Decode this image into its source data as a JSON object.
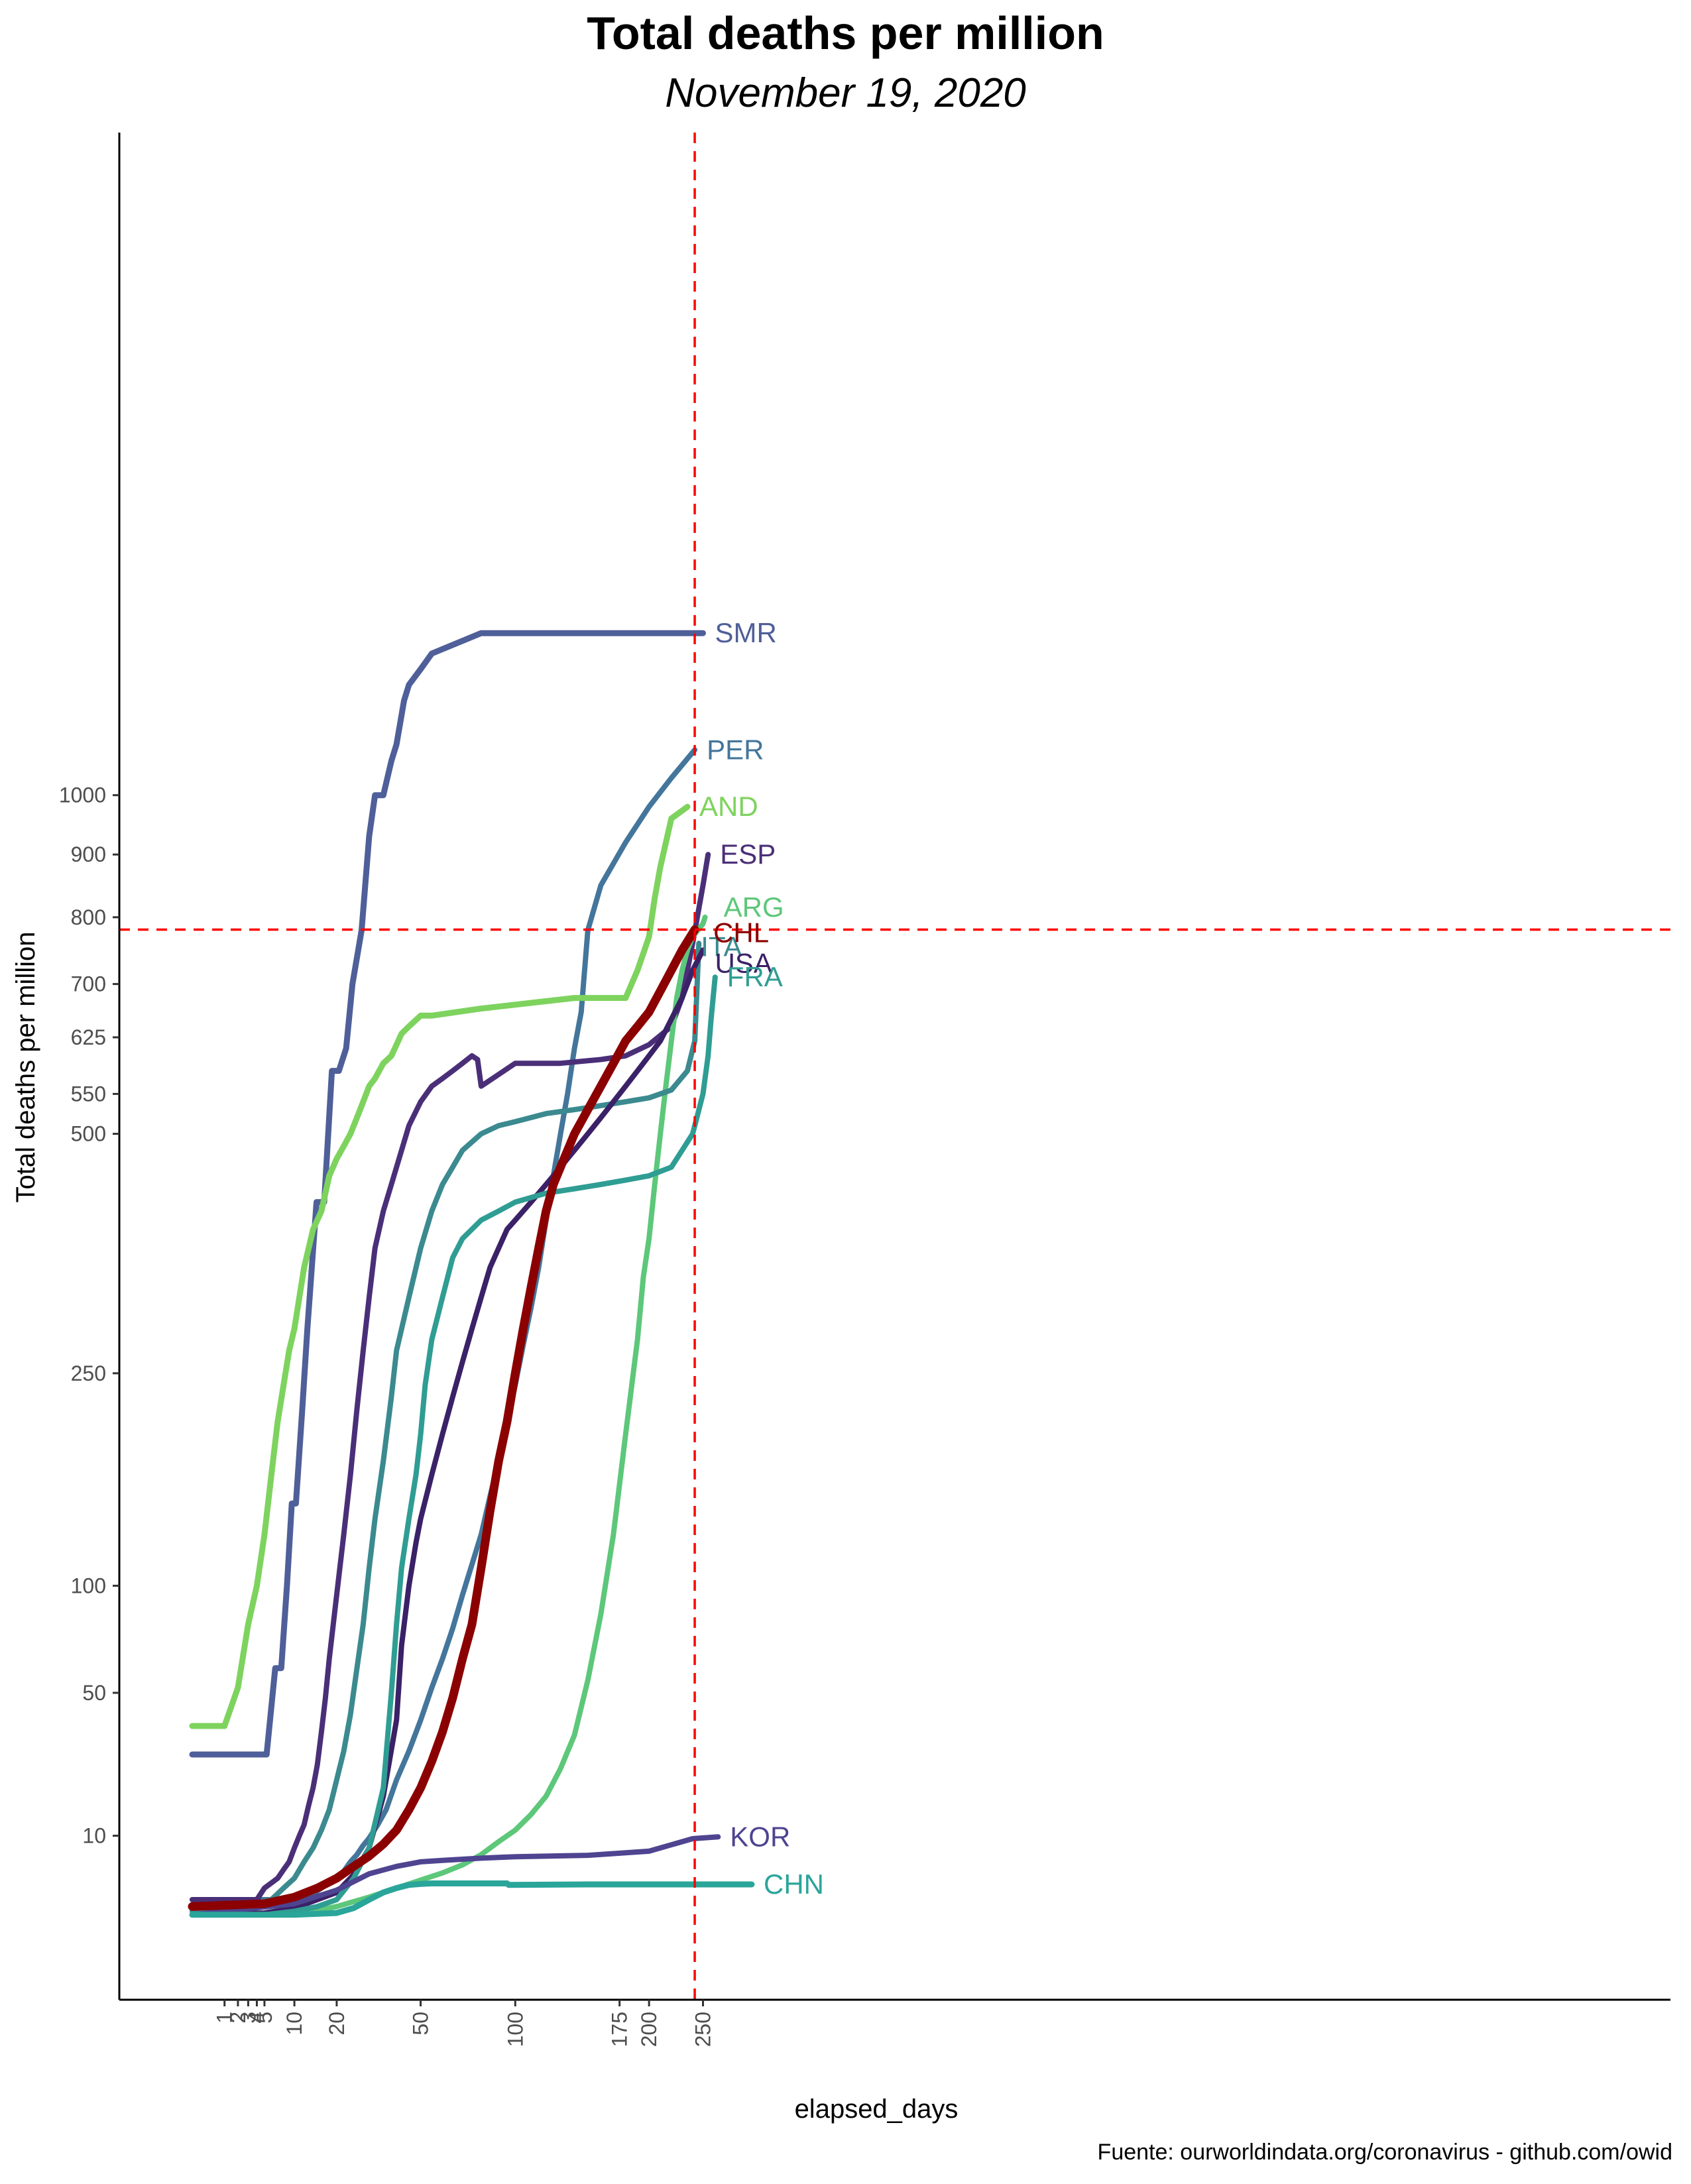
{
  "chart_data": {
    "type": "line",
    "title": "Total deaths per million",
    "subtitle": "November 19, 2020",
    "xlabel": "elapsed_days",
    "ylabel": "Total deaths per million",
    "caption": "Fuente: ourworldindata.org/coronavirus - github.com/owid",
    "x_scale": "sqrt",
    "y_scale": "sqrt",
    "x_ticks": [
      1,
      2,
      3,
      4,
      5,
      10,
      20,
      50,
      100,
      175,
      200,
      250
    ],
    "y_ticks": [
      10,
      50,
      100,
      250,
      500,
      550,
      625,
      700,
      800,
      900,
      1000
    ],
    "reference_lines": {
      "x": 242,
      "y": 781,
      "color": "#ff0000",
      "style": "dashed"
    },
    "grid": false,
    "legend": "direct labels at line ends",
    "series": [
      {
        "name": "SMR",
        "color": "#4f5f99",
        "width": 9,
        "x": [
          0,
          5.3,
          6.6,
          7.6,
          8.6,
          9.5,
          10.3,
          11.6,
          12.7,
          14.8,
          16.7,
          18.7,
          20.6,
          22.7,
          24.6,
          27.5,
          30,
          32,
          35,
          38,
          40,
          43,
          45,
          50,
          55,
          80,
          250
        ],
        "y": [
          29,
          29,
          60,
          60,
          100,
          150,
          150,
          220,
          290,
          420,
          420,
          580,
          580,
          610,
          700,
          780,
          930,
          1000,
          1000,
          1060,
          1090,
          1170,
          1200,
          1230,
          1260,
          1300,
          1300
        ]
      },
      {
        "name": "PER",
        "color": "#44769b",
        "width": 8,
        "x": [
          0,
          2,
          4,
          6,
          8,
          10,
          12,
          14,
          16,
          18,
          20,
          22,
          24,
          26,
          28,
          30,
          33,
          36,
          40,
          45,
          50,
          55,
          60,
          65,
          70,
          75,
          80,
          85,
          90,
          95,
          100,
          105,
          110,
          115,
          120,
          125,
          130,
          135,
          140,
          145,
          150,
          160,
          180,
          200,
          220,
          242
        ],
        "y": [
          2,
          2,
          2,
          2,
          2,
          2,
          2.2,
          2.5,
          3,
          3.5,
          4,
          4.8,
          6,
          7,
          8.4,
          9.6,
          12,
          15,
          22,
          30,
          40,
          52,
          64,
          78,
          95,
          112,
          130,
          155,
          180,
          210,
          240,
          275,
          310,
          350,
          400,
          450,
          500,
          550,
          610,
          660,
          780,
          850,
          920,
          980,
          1030,
          1080
        ]
      },
      {
        "name": "AND",
        "color": "#7ed35e",
        "width": 9,
        "x": [
          0,
          1,
          2,
          3,
          4,
          5,
          6,
          7,
          8,
          9,
          10,
          11,
          12,
          13,
          14,
          15,
          16,
          17,
          18,
          20,
          22,
          24,
          26,
          28,
          30,
          32,
          35,
          38,
          40,
          42,
          45,
          50,
          55,
          80,
          140,
          180,
          190,
          200,
          205,
          210,
          220,
          235
        ],
        "y": [
          38,
          38,
          52,
          80,
          100,
          130,
          170,
          210,
          240,
          270,
          290,
          320,
          350,
          370,
          390,
          400,
          410,
          430,
          450,
          470,
          485,
          500,
          520,
          540,
          560,
          570,
          590,
          600,
          615,
          630,
          640,
          655,
          655,
          665,
          680,
          680,
          720,
          770,
          830,
          880,
          960,
          980
        ]
      },
      {
        "name": "ESP",
        "color": "#4a2f78",
        "width": 8,
        "x": [
          0,
          2,
          4,
          5,
          6,
          7,
          8,
          9,
          10,
          11,
          12,
          13,
          14,
          15,
          16,
          17,
          18,
          20,
          22,
          24,
          26,
          28,
          30,
          32,
          35,
          38,
          40,
          45,
          50,
          55,
          60,
          65,
          70,
          75,
          78,
          80,
          100,
          130,
          160,
          180,
          200,
          220,
          230,
          240,
          250,
          255
        ],
        "y": [
          2,
          2,
          2,
          3,
          3.5,
          4,
          5,
          6,
          8,
          10,
          12,
          16,
          20,
          26,
          36,
          48,
          64,
          95,
          130,
          170,
          220,
          270,
          320,
          370,
          410,
          440,
          460,
          510,
          540,
          560,
          570,
          580,
          590,
          600,
          595,
          560,
          590,
          590,
          595,
          600,
          615,
          640,
          680,
          760,
          850,
          900
        ]
      },
      {
        "name": "ARG",
        "color": "#5dc77a",
        "width": 8,
        "x": [
          0,
          10,
          20,
          30,
          40,
          50,
          60,
          70,
          80,
          90,
          100,
          110,
          120,
          130,
          140,
          150,
          160,
          170,
          180,
          190,
          195,
          200,
          205,
          210,
          215,
          220,
          225,
          230,
          235,
          240,
          245,
          250,
          252
        ],
        "y": [
          1,
          1,
          1.5,
          2.2,
          3,
          3.8,
          4.6,
          5.6,
          7,
          9,
          11,
          14,
          18,
          25,
          35,
          55,
          85,
          130,
          200,
          280,
          340,
          380,
          440,
          500,
          560,
          620,
          680,
          720,
          750,
          770,
          780,
          790,
          800
        ]
      },
      {
        "name": "CHL",
        "color": "#8b0000",
        "width": 13,
        "x": [
          0,
          5,
          10,
          15,
          20,
          25,
          30,
          35,
          40,
          45,
          50,
          55,
          60,
          65,
          70,
          75,
          80,
          85,
          90,
          95,
          100,
          105,
          110,
          115,
          120,
          125,
          130,
          140,
          150,
          160,
          170,
          180,
          190,
          200,
          210,
          220,
          230,
          242
        ],
        "y": [
          1.5,
          1.7,
          2.2,
          3,
          4,
          5.4,
          6.8,
          8.6,
          11,
          15,
          20,
          27,
          36,
          48,
          64,
          80,
          110,
          145,
          180,
          210,
          250,
          290,
          330,
          370,
          410,
          440,
          460,
          500,
          530,
          560,
          590,
          620,
          640,
          660,
          690,
          720,
          750,
          781
        ]
      },
      {
        "name": "ITA",
        "color": "#3b8a8f",
        "width": 8,
        "x": [
          0,
          3,
          6,
          8,
          10,
          12,
          14,
          16,
          18,
          20,
          22,
          24,
          26,
          28,
          30,
          32,
          35,
          38,
          40,
          45,
          50,
          55,
          60,
          65,
          70,
          80,
          90,
          100,
          120,
          140,
          160,
          180,
          200,
          220,
          235,
          242,
          246
        ],
        "y": [
          1.2,
          1.3,
          2,
          3,
          4,
          6,
          8,
          11,
          15,
          22,
          30,
          42,
          60,
          80,
          110,
          140,
          180,
          230,
          270,
          320,
          370,
          410,
          440,
          460,
          480,
          500,
          510,
          515,
          525,
          530,
          535,
          540,
          545,
          555,
          580,
          620,
          760
        ]
      },
      {
        "name": "USA",
        "color": "#3b2167",
        "width": 8,
        "x": [
          0,
          5,
          10,
          15,
          20,
          25,
          30,
          35,
          40,
          42,
          45,
          48,
          50,
          55,
          60,
          65,
          70,
          75,
          80,
          85,
          90,
          95,
          100,
          110,
          120,
          130,
          140,
          150,
          160,
          170,
          180,
          190,
          200,
          210,
          220,
          230,
          240,
          250
        ],
        "y": [
          1,
          1.1,
          1.4,
          2,
          2.6,
          4.4,
          8,
          18,
          40,
          70,
          100,
          125,
          140,
          170,
          200,
          230,
          260,
          290,
          320,
          350,
          370,
          390,
          400,
          420,
          440,
          460,
          480,
          500,
          520,
          540,
          560,
          580,
          600,
          620,
          650,
          680,
          720,
          750
        ]
      },
      {
        "name": "FRA",
        "color": "#2f9d93",
        "width": 8,
        "x": [
          0,
          5,
          10,
          15,
          20,
          25,
          30,
          35,
          38,
          40,
          42,
          45,
          48,
          50,
          52,
          55,
          60,
          65,
          70,
          80,
          90,
          100,
          120,
          140,
          160,
          180,
          200,
          220,
          240,
          250,
          255,
          258,
          262
        ],
        "y": [
          1,
          1,
          1.2,
          1.5,
          2,
          4,
          8,
          20,
          50,
          80,
          110,
          140,
          170,
          200,
          240,
          280,
          320,
          360,
          380,
          400,
          410,
          420,
          430,
          435,
          440,
          445,
          450,
          460,
          500,
          550,
          600,
          650,
          710
        ]
      },
      {
        "name": "KOR",
        "color": "#4e4490",
        "width": 8,
        "x": [
          0,
          10,
          20,
          30,
          40,
          50,
          60,
          80,
          100,
          150,
          200,
          220,
          240,
          265
        ],
        "y": [
          1,
          1.7,
          2.8,
          4.5,
          5.4,
          6,
          6.2,
          6.5,
          6.7,
          6.9,
          7.5,
          8.5,
          9.5,
          9.8
        ]
      },
      {
        "name": "CHN",
        "color": "#2aa59a",
        "width": 9,
        "x": [
          0,
          10,
          20,
          25,
          30,
          35,
          40,
          45,
          50,
          55,
          60,
          70,
          80,
          95,
          96,
          150,
          200,
          300
        ],
        "y": [
          1,
          1,
          1.1,
          1.4,
          2,
          2.6,
          3,
          3.3,
          3.4,
          3.45,
          3.45,
          3.45,
          3.45,
          3.45,
          3.3,
          3.35,
          3.35,
          3.35
        ]
      }
    ]
  }
}
